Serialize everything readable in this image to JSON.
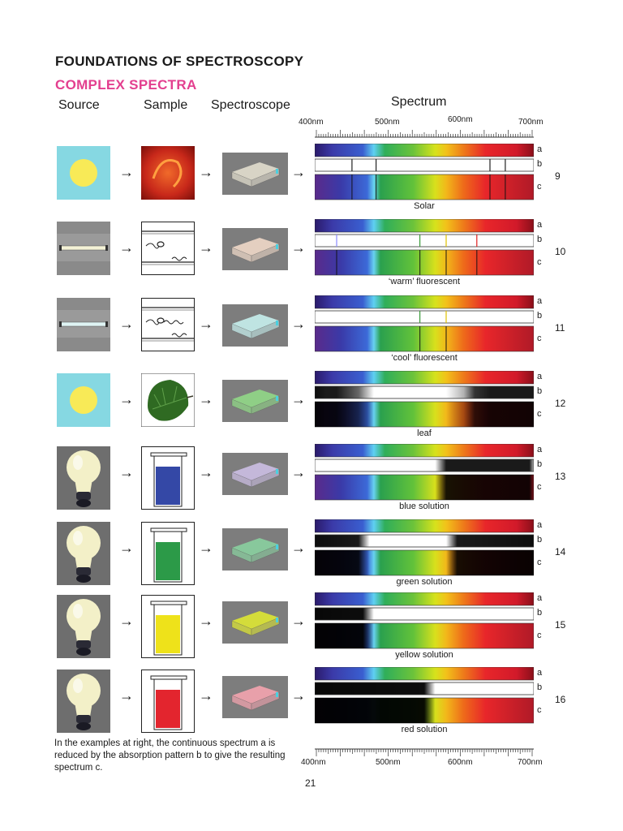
{
  "header": {
    "title": "FOUNDATIONS OF SPECTROSCOPY",
    "subtitle": "COMPLEX SPECTRA"
  },
  "columns": {
    "source": "Source",
    "sample": "Sample",
    "spectroscope": "Spectroscope",
    "spectrum": "Spectrum"
  },
  "scale": {
    "ticks_top": [
      "400nm",
      "500nm",
      "600nm",
      "700nm"
    ],
    "ticks_bottom": [
      "400nm",
      "500nm",
      "600nm",
      "700nm"
    ]
  },
  "band_labels": {
    "a": "a",
    "b": "b",
    "c": "c"
  },
  "colors": {
    "source_bg_blue": "#86d8e2",
    "sun_yellow": "#f8ea57",
    "tile_gray": "#7d7d7d",
    "subtitle_pink": "#e33f8f"
  },
  "rows": [
    {
      "number": "9",
      "label": "Solar",
      "source": "sun",
      "sample": "sun-photo",
      "scope_color": "#d8d4c6"
    },
    {
      "number": "10",
      "label": "‘warm’ fluorescent",
      "source": "tube",
      "sample": "gas-tube",
      "scope_color": "#e4cfc0"
    },
    {
      "number": "11",
      "label": "‘cool’ fluorescent",
      "source": "tube",
      "sample": "gas-tube",
      "scope_color": "#bfe4e2"
    },
    {
      "number": "12",
      "label": "leaf",
      "source": "sun",
      "sample": "leaf",
      "scope_color": "#8fcf86"
    },
    {
      "number": "13",
      "label": "blue solution",
      "source": "bulb",
      "sample": "beaker",
      "liquid": "#3448a6",
      "scope_color": "#c4b8da"
    },
    {
      "number": "14",
      "label": "green solution",
      "source": "bulb",
      "sample": "beaker",
      "liquid": "#2c9a48",
      "scope_color": "#88c89c"
    },
    {
      "number": "15",
      "label": "yellow solution",
      "source": "bulb",
      "sample": "beaker",
      "liquid": "#eee21a",
      "scope_color": "#d4dc3a"
    },
    {
      "number": "16",
      "label": "red solution",
      "source": "bulb",
      "sample": "beaker",
      "liquid": "#e3252e",
      "scope_color": "#e8a0aa"
    }
  ],
  "footer": {
    "note": "In the examples at right, the continuous spectrum a is reduced by the absorption pattern b to give the resulting spectrum c.",
    "page_number": "21"
  }
}
